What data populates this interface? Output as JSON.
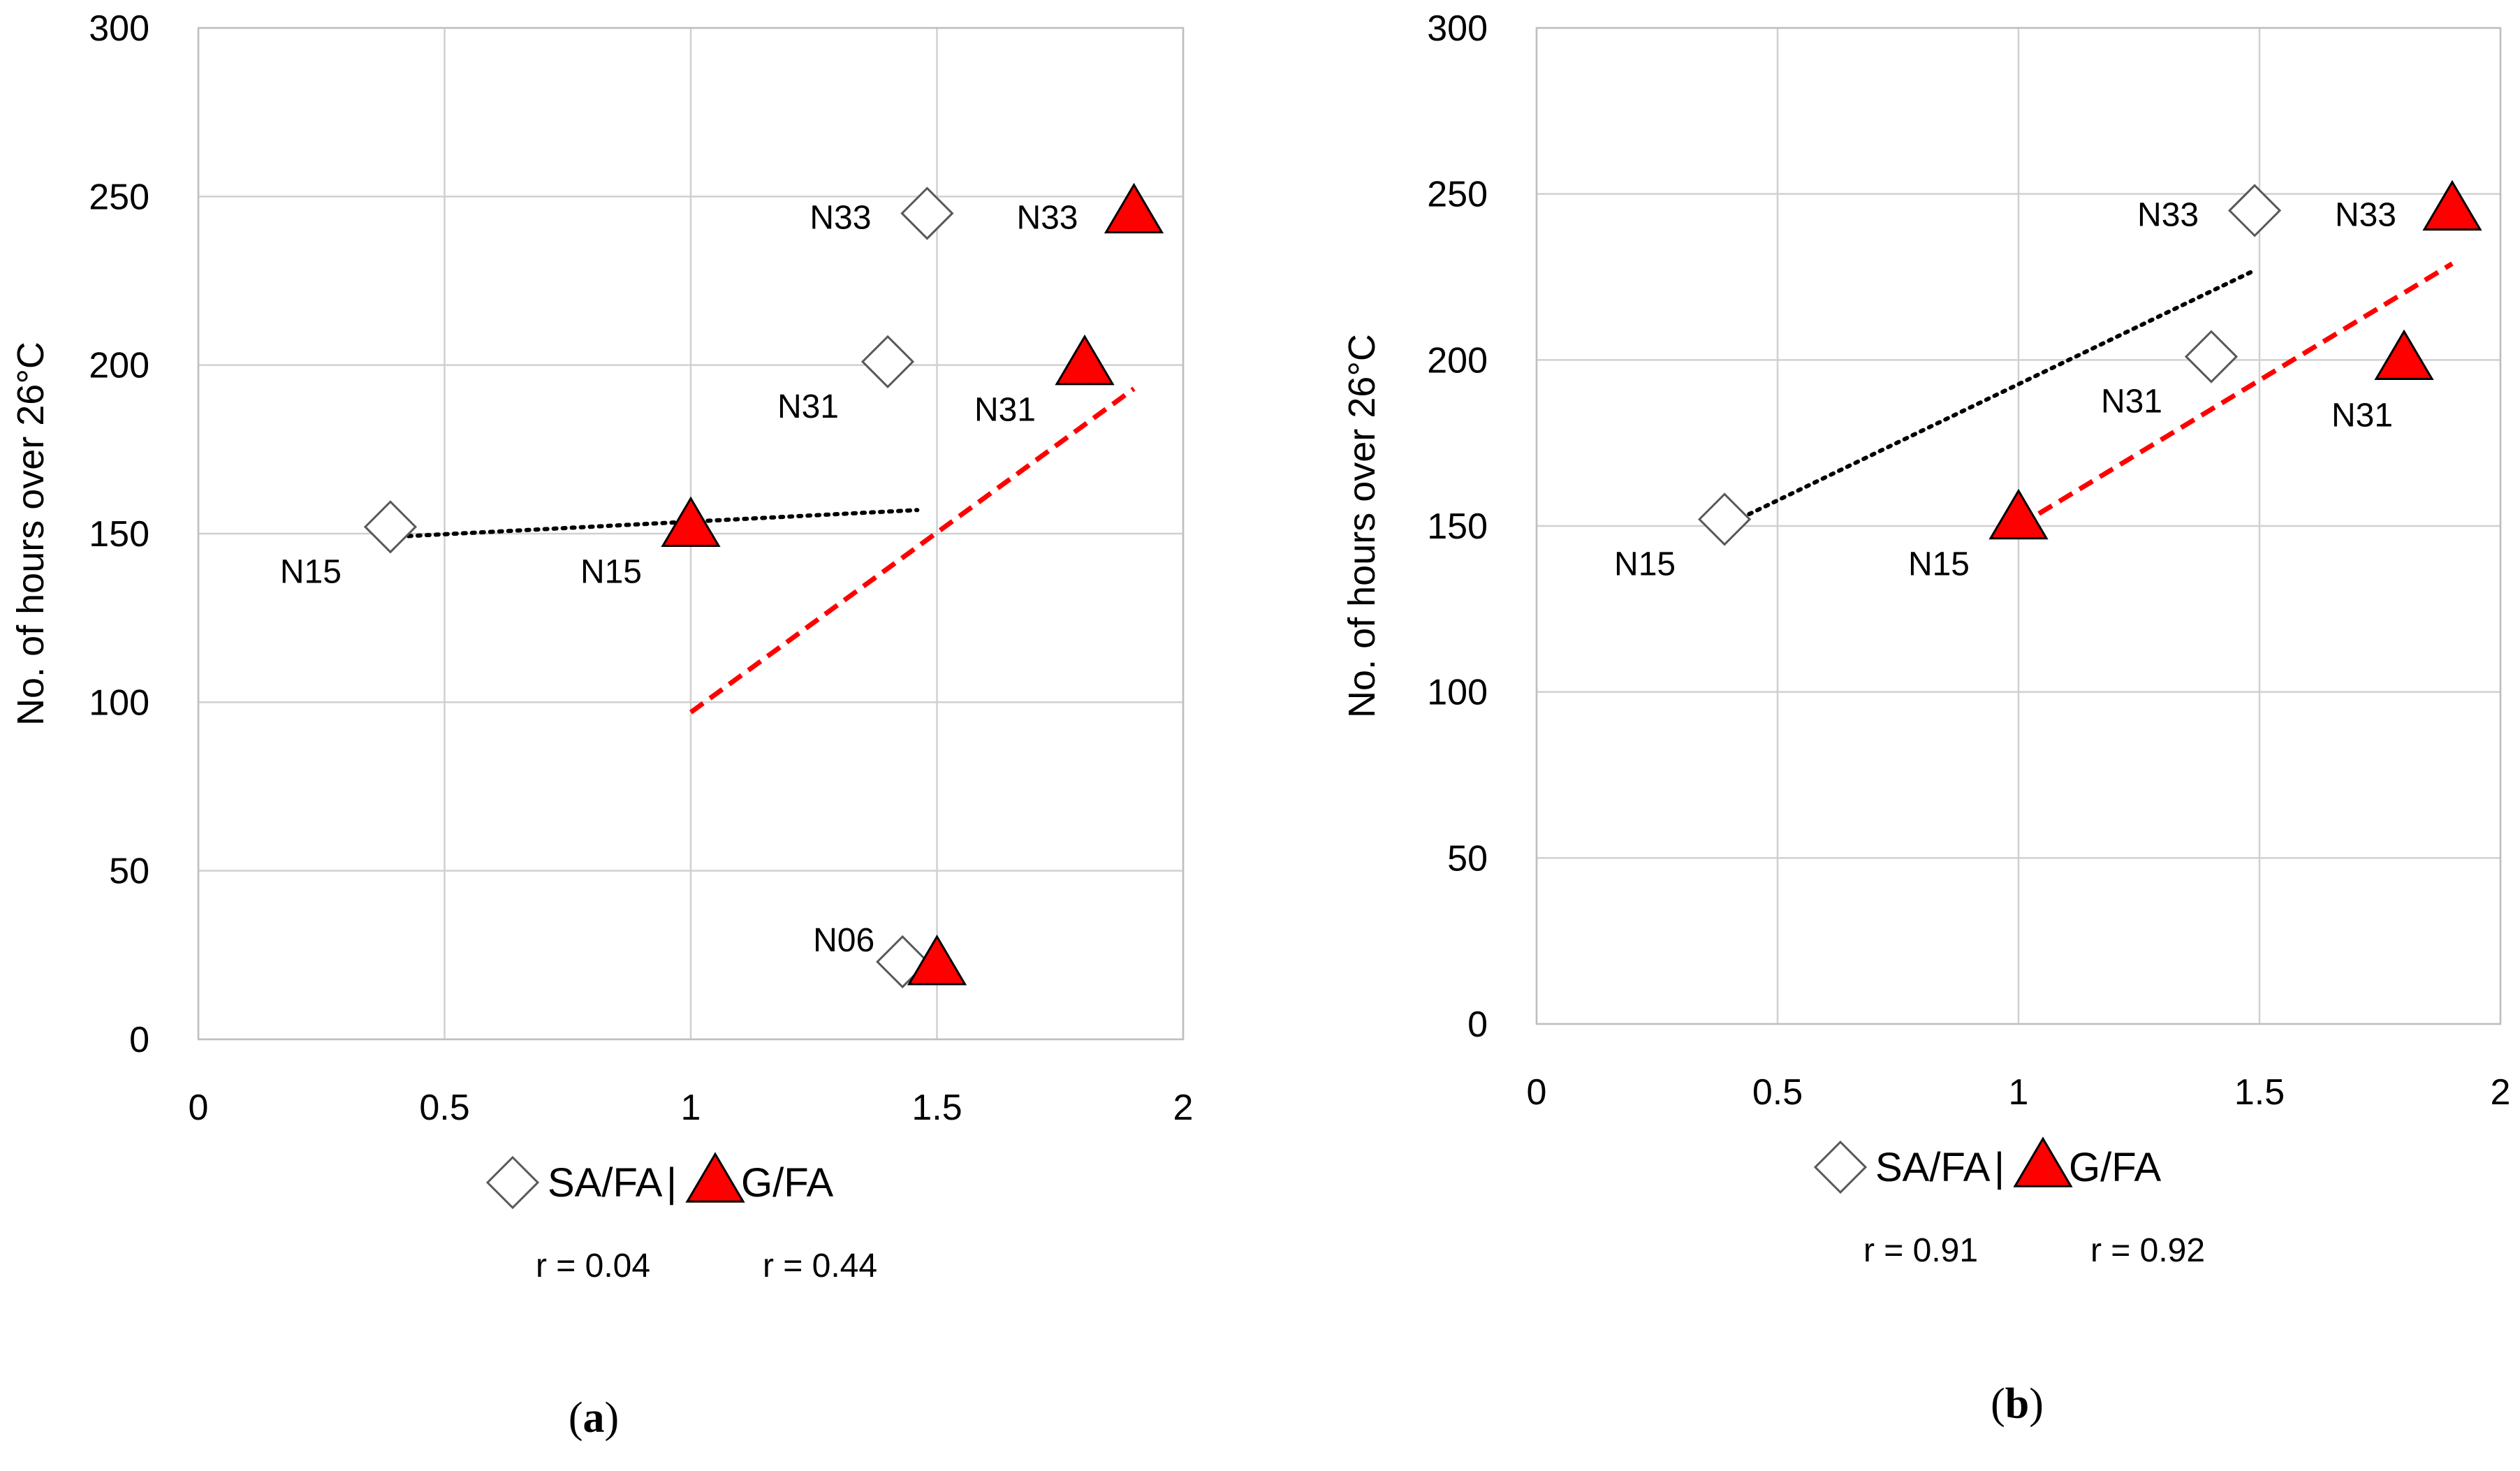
{
  "chart_data": [
    {
      "type": "scatter",
      "caption": "(a)",
      "caption_letter": "a",
      "xlabel": "",
      "ylabel": "No. of hours over 26°C",
      "xlim": [
        0,
        2
      ],
      "ylim": [
        0,
        300
      ],
      "xticks": [
        0,
        0.5,
        1,
        1.5,
        2
      ],
      "xtick_labels": [
        "0",
        "0.5",
        "1",
        "1.5",
        "2"
      ],
      "yticks": [
        0,
        50,
        100,
        150,
        200,
        250,
        300
      ],
      "ytick_labels": [
        "0",
        "50",
        "100",
        "150",
        "200",
        "250",
        "300"
      ],
      "grid": true,
      "legend": {
        "position": "bottom",
        "separator": "|",
        "items": [
          {
            "name": "SA/FA",
            "marker": "diamond-open",
            "r_label": "r = 0.04"
          },
          {
            "name": "G/FA",
            "marker": "triangle-red",
            "r_label": "r = 0.44"
          }
        ]
      },
      "series": [
        {
          "name": "SA/FA",
          "marker": "diamond-open",
          "points": [
            {
              "x": 0.39,
              "y": 152,
              "label": "N15",
              "label_pos": "below-left"
            },
            {
              "x": 1.4,
              "y": 201,
              "label": "N31",
              "label_pos": "below-left"
            },
            {
              "x": 1.48,
              "y": 245,
              "label": "N33",
              "label_pos": "left"
            },
            {
              "x": 1.43,
              "y": 23,
              "label": "N06",
              "label_pos": "upper-left"
            }
          ],
          "trendline": {
            "style": "dotted",
            "color": "#000000",
            "x": [
              0.39,
              1.46
            ],
            "y": [
              149,
              157
            ]
          }
        },
        {
          "name": "G/FA",
          "marker": "triangle-red",
          "points": [
            {
              "x": 1.0,
              "y": 152,
              "label": "N15",
              "label_pos": "below-left"
            },
            {
              "x": 1.8,
              "y": 200,
              "label": "N31",
              "label_pos": "below-left"
            },
            {
              "x": 1.9,
              "y": 245,
              "label": "N33",
              "label_pos": "left"
            },
            {
              "x": 1.5,
              "y": 22,
              "label": "",
              "label_pos": "none"
            }
          ],
          "trendline": {
            "style": "dashed",
            "color": "#ff0000",
            "x": [
              1.0,
              1.9
            ],
            "y": [
              97,
              193
            ]
          }
        }
      ]
    },
    {
      "type": "scatter",
      "caption": "(b)",
      "caption_letter": "b",
      "xlabel": "",
      "ylabel": "No. of hours over 26°C",
      "xlim": [
        0,
        2
      ],
      "ylim": [
        0,
        300
      ],
      "xticks": [
        0,
        0.5,
        1,
        1.5,
        2
      ],
      "xtick_labels": [
        "0",
        "0.5",
        "1",
        "1.5",
        "2"
      ],
      "yticks": [
        0,
        50,
        100,
        150,
        200,
        250,
        300
      ],
      "ytick_labels": [
        "0",
        "50",
        "100",
        "150",
        "200",
        "250",
        "300"
      ],
      "grid": true,
      "legend": {
        "position": "bottom",
        "separator": "|",
        "items": [
          {
            "name": "SA/FA",
            "marker": "diamond-open",
            "r_label": "r = 0.91"
          },
          {
            "name": "G/FA",
            "marker": "triangle-red",
            "r_label": "r = 0.92"
          }
        ]
      },
      "series": [
        {
          "name": "SA/FA",
          "marker": "diamond-open",
          "points": [
            {
              "x": 0.39,
              "y": 152,
              "label": "N15",
              "label_pos": "below-left"
            },
            {
              "x": 1.4,
              "y": 201,
              "label": "N31",
              "label_pos": "below-left"
            },
            {
              "x": 1.49,
              "y": 245,
              "label": "N33",
              "label_pos": "left"
            }
          ],
          "trendline": {
            "style": "dotted",
            "color": "#000000",
            "x": [
              0.39,
              1.49
            ],
            "y": [
              150,
              227
            ]
          }
        },
        {
          "name": "G/FA",
          "marker": "triangle-red",
          "points": [
            {
              "x": 1.0,
              "y": 152,
              "label": "N15",
              "label_pos": "below-left"
            },
            {
              "x": 1.8,
              "y": 200,
              "label": "N31",
              "label_pos": "below"
            },
            {
              "x": 1.9,
              "y": 245,
              "label": "N33",
              "label_pos": "left"
            }
          ],
          "trendline": {
            "style": "dashed",
            "color": "#ff0000",
            "x": [
              1.0,
              1.9
            ],
            "y": [
              150,
              229
            ]
          }
        }
      ]
    }
  ],
  "colors": {
    "grid": "#d0d0d0",
    "axis": "#bfbfbf",
    "triangle_fill": "#ff0000",
    "triangle_stroke": "#000000",
    "diamond_stroke": "#595959"
  }
}
